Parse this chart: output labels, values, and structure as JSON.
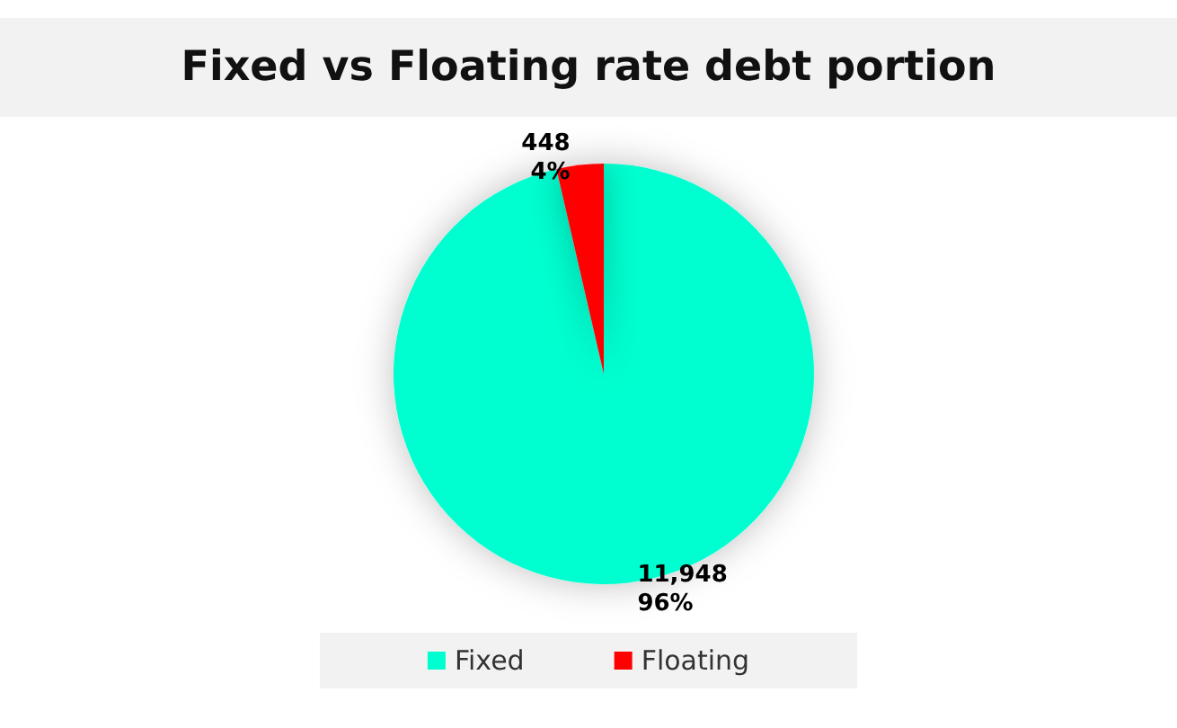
{
  "chart_data": {
    "type": "pie",
    "title": "Fixed vs Floating rate debt portion",
    "categories": [
      "Fixed",
      "Floating"
    ],
    "values": [
      11948,
      448
    ],
    "colors": [
      "#00ffd0",
      "#ff0000"
    ],
    "value_labels": [
      "11,948\n96%",
      "448\n4%"
    ],
    "legend": "bottom"
  }
}
